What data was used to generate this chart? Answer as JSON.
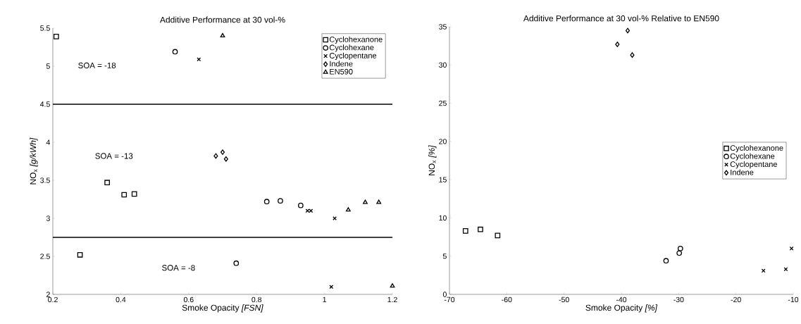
{
  "chart_data": [
    {
      "type": "scatter",
      "title": "Additive Performance at 30 vol-%",
      "xlabel": "Smoke Opacity *[FSN]*",
      "ylabel": "NO$_{x}$ *[g/kWh]*",
      "xlim": [
        0.2,
        1.2
      ],
      "ylim": [
        2,
        5.5
      ],
      "xticks": [
        0.2,
        0.4,
        0.6,
        0.8,
        1,
        1.2
      ],
      "yticks": [
        2,
        2.5,
        3,
        3.5,
        4,
        4.5,
        5,
        5.5
      ],
      "grid": false,
      "legend": "top right",
      "ref_lines": [
        {
          "axis": "y",
          "value": 4.5,
          "color": "#000000"
        },
        {
          "axis": "y",
          "value": 2.75,
          "color": "#000000"
        }
      ],
      "annotations": [
        "SOA = -18",
        "SOA = -13",
        "SOA = -8"
      ],
      "series": [
        {
          "name": "Cyclohexanone",
          "color": "#000000",
          "marker": "square",
          "x": [
            0.21,
            0.28,
            0.36,
            0.41,
            0.44
          ],
          "values": [
            5.39,
            2.52,
            3.47,
            3.31,
            3.32
          ]
        },
        {
          "name": "Cyclohexane",
          "color": "#000000",
          "marker": "circle",
          "x": [
            0.56,
            0.74,
            0.83,
            0.87,
            0.93
          ],
          "values": [
            5.19,
            2.41,
            3.22,
            3.23,
            3.17
          ]
        },
        {
          "name": "Cyclopentane",
          "color": "#000000",
          "marker": "cross",
          "x": [
            0.63,
            0.95,
            0.96,
            1.03,
            1.02
          ],
          "values": [
            5.09,
            3.1,
            3.1,
            3.0,
            2.1
          ]
        },
        {
          "name": "Indene",
          "color": "#000000",
          "marker": "diamond",
          "x": [
            0.68,
            0.7,
            0.71
          ],
          "values": [
            3.82,
            3.87,
            3.78
          ]
        },
        {
          "name": "EN590",
          "color": "#000000",
          "marker": "triangle",
          "x": [
            0.7,
            1.07,
            1.12,
            1.16,
            1.2
          ],
          "values": [
            5.4,
            3.11,
            3.21,
            3.21,
            2.11
          ]
        }
      ]
    },
    {
      "type": "scatter",
      "title": "Additive Performance at 30 vol-% Relative to EN590",
      "xlabel": "Smoke Opacity *[%]*",
      "ylabel": "NO$_{x}$ *[%]*",
      "xlim": [
        -70,
        -10
      ],
      "ylim": [
        0,
        35
      ],
      "xticks": [
        -70,
        -60,
        -50,
        -40,
        -30,
        -20,
        -10
      ],
      "yticks": [
        0,
        5,
        10,
        15,
        20,
        25,
        30,
        35
      ],
      "grid": false,
      "legend": "right",
      "series": [
        {
          "name": "Cyclohexanone",
          "color": "#000000",
          "marker": "square",
          "x": [
            -67.2,
            -64.6,
            -61.6
          ],
          "values": [
            8.3,
            8.5,
            7.7
          ]
        },
        {
          "name": "Cyclohexane",
          "color": "#000000",
          "marker": "circle",
          "x": [
            -32.2,
            -29.9,
            -29.7
          ],
          "values": [
            4.4,
            5.4,
            6.0
          ]
        },
        {
          "name": "Cyclopentane",
          "color": "#000000",
          "marker": "cross",
          "x": [
            -15.2,
            -11.3,
            -10.3
          ],
          "values": [
            3.1,
            3.3,
            6.0
          ]
        },
        {
          "name": "Indene",
          "color": "#000000",
          "marker": "diamond",
          "x": [
            -40.7,
            -38.9,
            -38.1
          ],
          "values": [
            32.7,
            34.5,
            31.3
          ]
        }
      ]
    }
  ]
}
